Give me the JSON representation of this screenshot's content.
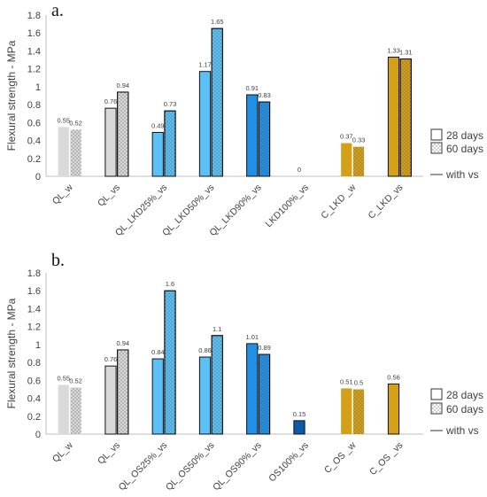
{
  "colors": {
    "light_gray": "#d9d9d9",
    "light_blue": "#5bc0f5",
    "mid_blue": "#1e90e6",
    "dark_blue": "#0a5ca8",
    "gold": "#d4a017",
    "outline": "#111111",
    "dots": "#555555"
  },
  "legend": {
    "days28": "28 days",
    "days60": "60 days",
    "withvs": "with vs"
  },
  "chart_data": [
    {
      "type": "bar",
      "panel_label": "a.",
      "ylabel": "Flexural strength - MPa",
      "ylim": [
        0,
        1.8
      ],
      "yticks": [
        0,
        0.2,
        0.4,
        0.6,
        0.8,
        1,
        1.2,
        1.4,
        1.6,
        1.8
      ],
      "categories": [
        "QL_w",
        "QL_vs",
        "QL_LKD25%_vs",
        "QL_LKD50%_vs",
        "QL_LKD90%_vs",
        "LKD100%_vs",
        "C_LKD _w",
        "C_LKD_vs"
      ],
      "color_keys": [
        "light_gray",
        "light_gray",
        "light_blue",
        "light_blue",
        "mid_blue",
        "dark_blue",
        "gold",
        "gold"
      ],
      "with_vs": [
        false,
        true,
        true,
        true,
        true,
        true,
        false,
        true
      ],
      "series": [
        {
          "name": "28 days",
          "values": [
            0.55,
            0.76,
            0.49,
            1.17,
            0.91,
            0,
            0.37,
            1.33
          ],
          "labels": [
            "0.55",
            "0.76",
            "0.49",
            "1.17",
            "0.91",
            "0",
            "0.37",
            "1.33"
          ]
        },
        {
          "name": "60 days",
          "values": [
            0.52,
            0.94,
            0.73,
            1.65,
            0.83,
            null,
            0.33,
            1.31
          ],
          "labels": [
            "0.52",
            "0.94",
            "0.73",
            "1.65",
            "0.83",
            "",
            "0.33",
            "1.31"
          ]
        }
      ]
    },
    {
      "type": "bar",
      "panel_label": "b.",
      "ylabel": "Flexural strength - MPa",
      "ylim": [
        0,
        1.8
      ],
      "yticks": [
        0,
        0.2,
        0.4,
        0.6,
        0.8,
        1,
        1.2,
        1.4,
        1.6,
        1.8
      ],
      "categories": [
        "QL_w",
        "QL_vs",
        "QL_OS25%_vs",
        "QL_OS50%_vs",
        "QL_OS90%_vs",
        "OS100%_vs",
        "C_OS _w",
        "C_OS _vs"
      ],
      "color_keys": [
        "light_gray",
        "light_gray",
        "light_blue",
        "light_blue",
        "mid_blue",
        "dark_blue",
        "gold",
        "gold"
      ],
      "with_vs": [
        false,
        true,
        true,
        true,
        true,
        true,
        false,
        true
      ],
      "series": [
        {
          "name": "28 days",
          "values": [
            0.55,
            0.76,
            0.84,
            0.86,
            1.01,
            0.15,
            0.51,
            0.56
          ],
          "labels": [
            "0.55",
            "0.76",
            "0.84",
            "0.86",
            "1.01",
            "0.15",
            "0.51",
            "0.56"
          ]
        },
        {
          "name": "60 days",
          "values": [
            0.52,
            0.94,
            1.6,
            1.1,
            0.89,
            null,
            0.5,
            null
          ],
          "labels": [
            "0.52",
            "0.94",
            "1.6",
            "1.1",
            "0.89",
            "",
            "0.5",
            ""
          ]
        }
      ]
    }
  ]
}
